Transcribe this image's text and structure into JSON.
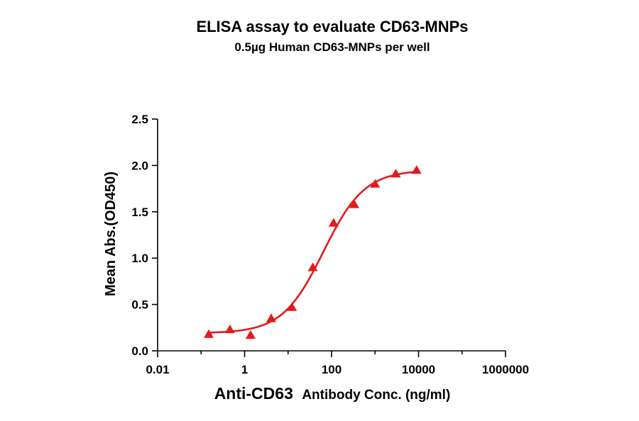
{
  "chart_data": {
    "type": "scatter",
    "title": "ELISA assay to evaluate CD63-MNPs",
    "subtitle": "0.5µg Human CD63-MNPs per well",
    "xlabel_main": "Anti-CD63",
    "xlabel_rest": "Antibody Conc. (ng/ml)",
    "ylabel": "Mean Abs.(OD450)",
    "x_scale": "log",
    "xlim": [
      0.01,
      1000000
    ],
    "ylim": [
      0,
      2.5
    ],
    "x_ticks": [
      {
        "value": 0.01,
        "label": "0.01"
      },
      {
        "value": 1,
        "label": "1"
      },
      {
        "value": 100,
        "label": "100"
      },
      {
        "value": 10000,
        "label": "10000"
      },
      {
        "value": 1000000,
        "label": "1000000"
      }
    ],
    "y_ticks": [
      {
        "value": 0.0,
        "label": "0.0"
      },
      {
        "value": 0.5,
        "label": "0.5"
      },
      {
        "value": 1.0,
        "label": "1.0"
      },
      {
        "value": 1.5,
        "label": "1.5"
      },
      {
        "value": 2.0,
        "label": "2.0"
      },
      {
        "value": 2.5,
        "label": "2.5"
      }
    ],
    "grid": false,
    "legend": "none",
    "series": [
      {
        "marker": "triangle",
        "color": "#e31a1c",
        "points": [
          {
            "x": 0.15,
            "y": 0.18
          },
          {
            "x": 0.46,
            "y": 0.23
          },
          {
            "x": 1.37,
            "y": 0.17
          },
          {
            "x": 4.1,
            "y": 0.35
          },
          {
            "x": 12.3,
            "y": 0.47
          },
          {
            "x": 37,
            "y": 0.9
          },
          {
            "x": 111,
            "y": 1.38
          },
          {
            "x": 333,
            "y": 1.58
          },
          {
            "x": 1000,
            "y": 1.8
          },
          {
            "x": 3000,
            "y": 1.91
          },
          {
            "x": 9000,
            "y": 1.95
          }
        ],
        "fit": {
          "model": "4PL",
          "bottom": 0.19,
          "top": 1.95,
          "ec50": 65,
          "hill": 0.92,
          "x_range": [
            0.15,
            9000
          ]
        }
      }
    ]
  }
}
